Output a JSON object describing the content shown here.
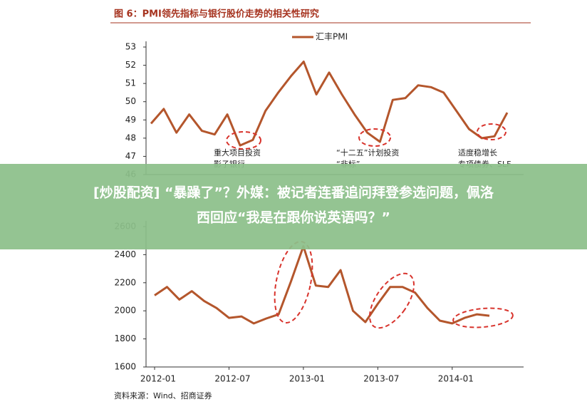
{
  "figure_title": "图 6：PMI领先指标与银行股价走势的相关性研究",
  "source": "资料来源：Wind、招商证券",
  "banner": [
    "[炒股配资] “暴躁了”？外媒：被记者连番追问拜登参选问题，佩洛",
    "西回应“我是在跟你说英语吗？”"
  ],
  "chart_data": [
    {
      "type": "line",
      "categories": [
        null,
        null,
        null,
        null,
        null,
        null,
        null,
        null,
        null,
        null,
        null,
        null,
        null,
        null,
        null,
        null,
        null,
        null,
        null,
        null,
        null,
        null,
        null,
        null,
        null,
        null,
        null,
        null,
        null
      ],
      "series": [
        {
          "name": "汇丰PMI",
          "color": "#b4562c",
          "values": [
            48.8,
            49.6,
            48.3,
            49.3,
            48.4,
            48.2,
            49.3,
            47.6,
            47.9,
            49.5,
            50.5,
            51.4,
            52.2,
            50.4,
            51.6,
            50.4,
            49.3,
            48.3,
            47.8,
            50.1,
            50.2,
            50.9,
            50.8,
            50.5,
            49.5,
            48.5,
            48.0,
            48.1,
            49.4
          ]
        }
      ],
      "ylim": [
        46,
        53
      ],
      "yticks": [
        46,
        47,
        48,
        49,
        50,
        51,
        52,
        53
      ],
      "annotations": [
        {
          "lines": [
            "重大项目投资",
            "影子银行"
          ]
        },
        {
          "lines": [
            "“十二五”计划投资",
            "“非标”"
          ]
        },
        {
          "lines": [
            "适度稳增长",
            "专项债券、SLF"
          ]
        }
      ]
    },
    {
      "type": "line",
      "categories": [
        "2012-01",
        null,
        null,
        null,
        null,
        null,
        "2012-07",
        null,
        null,
        null,
        null,
        null,
        "2013-01",
        null,
        null,
        null,
        null,
        null,
        "2013-07",
        null,
        null,
        null,
        null,
        null,
        "2014-01",
        null,
        null,
        null
      ],
      "series": [
        {
          "color": "#b4562c",
          "values": [
            2110,
            2170,
            2080,
            2140,
            2070,
            2020,
            1950,
            1960,
            1910,
            1945,
            1975,
            2210,
            2460,
            2180,
            2170,
            2290,
            2000,
            1920,
            2050,
            2170,
            2170,
            2130,
            2020,
            1930,
            1910,
            1950,
            1975,
            1965
          ]
        }
      ],
      "ylim": [
        1600,
        2600
      ],
      "yticks": [
        1600,
        1800,
        2000,
        2200,
        2400,
        2600
      ]
    }
  ]
}
